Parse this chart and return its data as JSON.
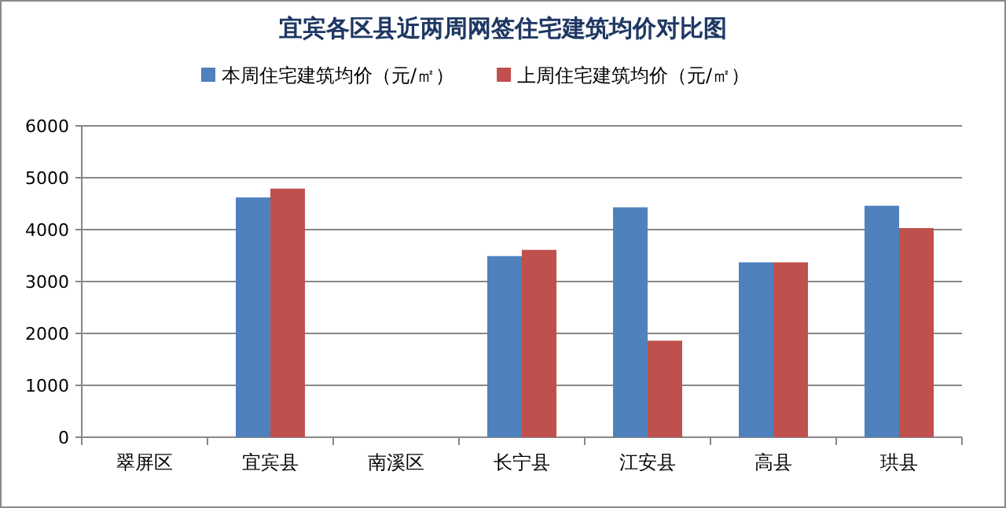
{
  "chart_data": {
    "type": "bar",
    "title": "宜宾各区县近两周网签住宅建筑均价对比图",
    "categories": [
      "翠屏区",
      "宜宾县",
      "南溪区",
      "长宁县",
      "江安县",
      "高县",
      "珙县"
    ],
    "series": [
      {
        "name": "本周住宅建筑均价（元/㎡）",
        "color": "#4f81bd",
        "values": [
          null,
          4620,
          null,
          3490,
          4430,
          3370,
          4460
        ]
      },
      {
        "name": "上周住宅建筑均价（元/㎡）",
        "color": "#c0504d",
        "values": [
          null,
          4790,
          null,
          3610,
          1860,
          3370,
          4030
        ]
      }
    ],
    "ylim": [
      0,
      6000
    ],
    "yticks": [
      0,
      1000,
      2000,
      3000,
      4000,
      5000,
      6000
    ],
    "grid": "y",
    "legend": "top"
  }
}
